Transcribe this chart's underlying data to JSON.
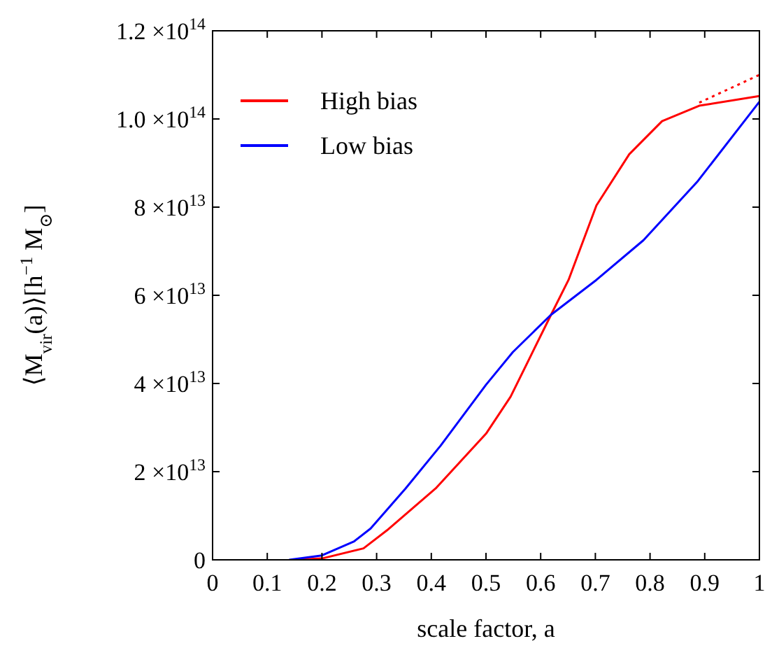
{
  "chart_data": {
    "type": "line",
    "xlabel": "scale factor, a",
    "ylabel": "⟨M$_{vir}$(a)⟩[h$^{−1}$ M$_{⊙}$]",
    "xlim": [
      0,
      1
    ],
    "xticks": [
      0,
      0.1,
      0.2,
      0.3,
      0.4,
      0.5,
      0.6,
      0.7,
      0.8,
      0.9,
      1
    ],
    "ylim": [
      0,
      120000000000000.0
    ],
    "yticks": [
      {
        "value": 0,
        "label": "0"
      },
      {
        "value": 20000000000000.0,
        "label": "2 ×10$^{13}$"
      },
      {
        "value": 40000000000000.0,
        "label": "4 ×10$^{13}$"
      },
      {
        "value": 60000000000000.0,
        "label": "6 ×10$^{13}$"
      },
      {
        "value": 80000000000000.0,
        "label": "8 ×10$^{13}$"
      },
      {
        "value": 100000000000000.0,
        "label": "1.0 ×10$^{14}$"
      },
      {
        "value": 120000000000000.0,
        "label": "1.2 ×10$^{14}$"
      }
    ],
    "legend": "top left",
    "grid": false,
    "marker": "none",
    "series": [
      {
        "name": "High bias",
        "color": "#ff0000",
        "line_style": "solid",
        "x": [
          0.146,
          0.2,
          0.276,
          0.319,
          0.408,
          0.5,
          0.545,
          0.619,
          0.651,
          0.702,
          0.762,
          0.822,
          0.89,
          1.0
        ],
        "values": [
          0,
          300000000000.0,
          2600000000000.0,
          6700000000000.0,
          16200000000000.0,
          28600000000000.0,
          37000000000000.0,
          55600000000000.0,
          63500000000000.0,
          80400000000000.0,
          92000000000000.0,
          99500000000000.0,
          103000000000000.0,
          105200000000000.0
        ]
      },
      {
        "name": "Low bias",
        "color": "#0000ff",
        "line_style": "solid",
        "x": [
          0.14,
          0.2,
          0.259,
          0.289,
          0.353,
          0.417,
          0.5,
          0.549,
          0.619,
          0.702,
          0.788,
          0.886,
          1.0
        ],
        "values": [
          0,
          1000000000000.0,
          4200000000000.0,
          7100000000000.0,
          16200000000000.0,
          25900000000000.0,
          39700000000000.0,
          47100000000000.0,
          55600000000000.0,
          63500000000000.0,
          72500000000000.0,
          85700000000000.0,
          103900000000000.0
        ]
      },
      {
        "color": "#ff0000",
        "line_style": "dotted",
        "x": [
          0.89,
          1.0
        ],
        "values": [
          103700000000000.0,
          110000000000000.0
        ]
      }
    ]
  }
}
